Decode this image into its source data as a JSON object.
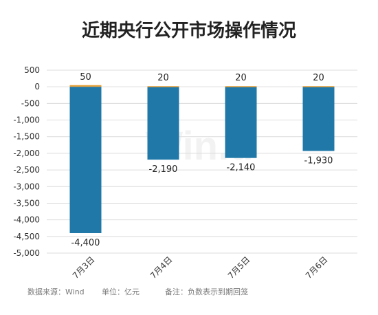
{
  "chart_data": {
    "type": "bar",
    "title": "近期央行公开市场操作情况",
    "categories": [
      "7月3日",
      "7月4日",
      "7月5日",
      "7月6日"
    ],
    "series": [
      {
        "values": [
          -4400,
          -2190,
          -2140,
          -1930
        ],
        "labels": [
          "-4,400",
          "-2,190",
          "-2,140",
          "-1,930"
        ],
        "color": "#1f78a8"
      },
      {
        "values": [
          50,
          20,
          20,
          20
        ],
        "labels": [
          "50",
          "20",
          "20",
          "20"
        ],
        "color": "#e8a33a"
      }
    ],
    "ylim": [
      -5000,
      500
    ],
    "yticks": [
      500,
      0,
      -500,
      -1000,
      -1500,
      -2000,
      -2500,
      -3000,
      -3500,
      -4000,
      -4500,
      -5000
    ],
    "ytick_labels": [
      "500",
      "0",
      "-500",
      "-1,000",
      "-1,500",
      "-2,000",
      "-2,500",
      "-3,000",
      "-3,500",
      "-4,000",
      "-4,500",
      "-5,000"
    ],
    "grid": true,
    "grid_color": "#dcdcdc",
    "watermark": "Win.d"
  },
  "footnotes": {
    "source": "数据来源：Wind",
    "unit": "单位：亿元",
    "note": "备注：负数表示到期回笼"
  }
}
